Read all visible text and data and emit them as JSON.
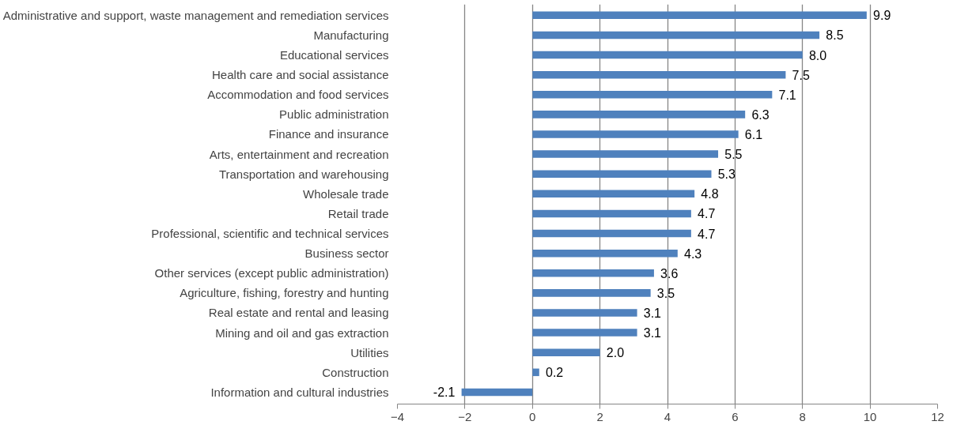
{
  "chart_data": {
    "type": "bar",
    "orientation": "horizontal",
    "categories": [
      "Administrative and support, waste management and remediation services",
      "Manufacturing",
      "Educational services",
      "Health care and social assistance",
      "Accommodation and food services",
      "Public administration",
      "Finance and insurance",
      "Arts, entertainment and recreation",
      "Transportation and warehousing",
      "Wholesale trade",
      "Retail trade",
      "Professional, scientific and technical services",
      "Business sector",
      "Other services (except public administration)",
      "Agriculture, fishing, forestry and hunting",
      "Real estate and rental and leasing",
      "Mining and oil and gas extraction",
      "Utilities",
      "Construction",
      "Information and cultural industries"
    ],
    "values": [
      9.9,
      8.5,
      8.0,
      7.5,
      7.1,
      6.3,
      6.1,
      5.5,
      5.3,
      4.8,
      4.7,
      4.7,
      4.3,
      3.6,
      3.5,
      3.1,
      3.1,
      2.0,
      0.2,
      -2.1
    ],
    "value_labels": [
      "9.9",
      "8.5",
      "8.0",
      "7.5",
      "7.1",
      "6.3",
      "6.1",
      "5.5",
      "5.3",
      "4.8",
      "4.7",
      "4.7",
      "4.3",
      "3.6",
      "3.5",
      "3.1",
      "3.1",
      "2.0",
      "0.2",
      "-2.1"
    ],
    "color": "#4f81bd",
    "xlim": [
      -4,
      12
    ],
    "xticks": [
      -4,
      -2,
      0,
      2,
      4,
      6,
      8,
      10,
      12
    ],
    "grid": "x"
  }
}
